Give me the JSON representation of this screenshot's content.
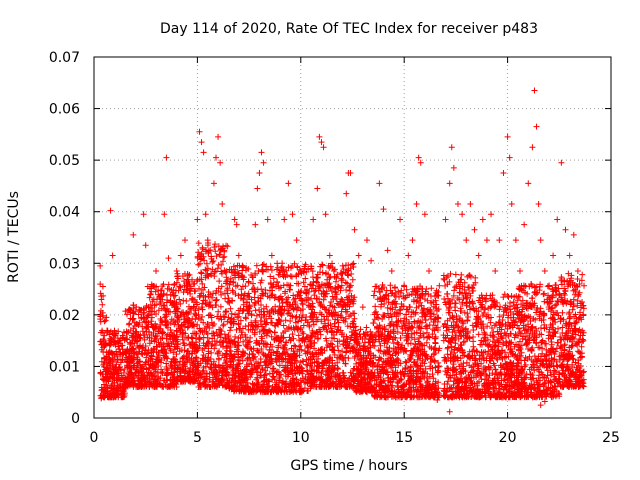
{
  "chart_data": {
    "type": "scatter",
    "title": "Day 114 of 2020, Rate Of TEC Index for receiver p483",
    "xlabel": "GPS time / hours",
    "ylabel": "ROTI / TECUs",
    "xlim": [
      0,
      25
    ],
    "ylim": [
      0,
      0.07
    ],
    "xticks": [
      0,
      5,
      10,
      15,
      20,
      25
    ],
    "xtick_labels": [
      "0",
      "5",
      "10",
      "15",
      "20",
      "25"
    ],
    "yticks": [
      0,
      0.01,
      0.02,
      0.03,
      0.04,
      0.05,
      0.06,
      0.07
    ],
    "ytick_labels": [
      "0",
      "0.01",
      "0.02",
      "0.03",
      "0.04",
      "0.05",
      "0.06",
      "0.07"
    ],
    "grid": true,
    "marker": "+",
    "color": "#ff0000",
    "series": [
      {
        "name": "ROTI",
        "points": [
          [
            0.3,
            0.0295
          ],
          [
            0.3,
            0.0148
          ],
          [
            0.4,
            0.0085
          ],
          [
            0.35,
            0.0038
          ],
          [
            0.4,
            0.0055
          ],
          [
            0.8,
            0.0402
          ],
          [
            0.9,
            0.0315
          ],
          [
            1.0,
            0.012
          ],
          [
            1.2,
            0.0095
          ],
          [
            1.4,
            0.0075
          ],
          [
            1.5,
            0.006
          ],
          [
            1.7,
            0.0125
          ],
          [
            1.8,
            0.0095
          ],
          [
            1.9,
            0.0355
          ],
          [
            2.0,
            0.0155
          ],
          [
            2.2,
            0.021
          ],
          [
            2.3,
            0.0195
          ],
          [
            2.4,
            0.0395
          ],
          [
            2.5,
            0.0335
          ],
          [
            2.6,
            0.0255
          ],
          [
            2.7,
            0.0145
          ],
          [
            2.8,
            0.0075
          ],
          [
            3.0,
            0.0285
          ],
          [
            3.2,
            0.0235
          ],
          [
            3.3,
            0.0185
          ],
          [
            3.4,
            0.0395
          ],
          [
            3.5,
            0.0505
          ],
          [
            3.6,
            0.031
          ],
          [
            3.7,
            0.0225
          ],
          [
            3.8,
            0.0155
          ],
          [
            3.9,
            0.0095
          ],
          [
            4.0,
            0.0285
          ],
          [
            4.2,
            0.0315
          ],
          [
            4.3,
            0.0275
          ],
          [
            4.4,
            0.0345
          ],
          [
            4.5,
            0.0155
          ],
          [
            4.6,
            0.0205
          ],
          [
            4.7,
            0.0185
          ],
          [
            4.8,
            0.0135
          ],
          [
            4.9,
            0.0085
          ],
          [
            5.0,
            0.0385
          ],
          [
            5.1,
            0.0555
          ],
          [
            5.2,
            0.0535
          ],
          [
            5.3,
            0.0515
          ],
          [
            5.4,
            0.0395
          ],
          [
            5.5,
            0.0345
          ],
          [
            5.6,
            0.0225
          ],
          [
            5.7,
            0.0185
          ],
          [
            5.8,
            0.0455
          ],
          [
            5.9,
            0.0505
          ],
          [
            6.0,
            0.0545
          ],
          [
            6.1,
            0.0495
          ],
          [
            6.2,
            0.0415
          ],
          [
            6.3,
            0.0325
          ],
          [
            6.4,
            0.0265
          ],
          [
            6.5,
            0.0195
          ],
          [
            6.6,
            0.0145
          ],
          [
            6.7,
            0.0115
          ],
          [
            6.8,
            0.0385
          ],
          [
            6.9,
            0.0375
          ],
          [
            7.0,
            0.0315
          ],
          [
            7.2,
            0.0255
          ],
          [
            7.4,
            0.0225
          ],
          [
            7.6,
            0.0185
          ],
          [
            7.8,
            0.0375
          ],
          [
            7.9,
            0.0445
          ],
          [
            8.0,
            0.0475
          ],
          [
            8.1,
            0.0515
          ],
          [
            8.2,
            0.0495
          ],
          [
            8.4,
            0.0385
          ],
          [
            8.6,
            0.0315
          ],
          [
            8.8,
            0.0255
          ],
          [
            9.0,
            0.0205
          ],
          [
            9.2,
            0.0385
          ],
          [
            9.4,
            0.0455
          ],
          [
            9.6,
            0.0395
          ],
          [
            9.8,
            0.0345
          ],
          [
            10.0,
            0.0285
          ],
          [
            10.2,
            0.0255
          ],
          [
            10.4,
            0.0215
          ],
          [
            10.6,
            0.0385
          ],
          [
            10.8,
            0.0445
          ],
          [
            10.9,
            0.0545
          ],
          [
            11.0,
            0.0535
          ],
          [
            11.1,
            0.0525
          ],
          [
            11.2,
            0.0395
          ],
          [
            11.4,
            0.0315
          ],
          [
            11.6,
            0.0285
          ],
          [
            11.8,
            0.0255
          ],
          [
            12.0,
            0.0215
          ],
          [
            12.2,
            0.0435
          ],
          [
            12.3,
            0.0475
          ],
          [
            12.4,
            0.0475
          ],
          [
            12.6,
            0.0365
          ],
          [
            12.8,
            0.0315
          ],
          [
            13.0,
            0.0215
          ],
          [
            13.2,
            0.0345
          ],
          [
            13.4,
            0.0305
          ],
          [
            13.6,
            0.0255
          ],
          [
            13.8,
            0.0455
          ],
          [
            14.0,
            0.0405
          ],
          [
            14.2,
            0.0325
          ],
          [
            14.4,
            0.0285
          ],
          [
            14.6,
            0.0235
          ],
          [
            14.8,
            0.0385
          ],
          [
            15.0,
            0.0255
          ],
          [
            15.2,
            0.0315
          ],
          [
            15.4,
            0.0345
          ],
          [
            15.6,
            0.0415
          ],
          [
            15.7,
            0.0505
          ],
          [
            15.8,
            0.0495
          ],
          [
            16.0,
            0.0395
          ],
          [
            16.2,
            0.0285
          ],
          [
            16.4,
            0.0225
          ],
          [
            16.6,
            0.0195
          ],
          [
            16.7,
            0.0135
          ],
          [
            17.0,
            0.0385
          ],
          [
            17.2,
            0.0455
          ],
          [
            17.3,
            0.0525
          ],
          [
            17.4,
            0.0485
          ],
          [
            17.6,
            0.0415
          ],
          [
            17.8,
            0.0395
          ],
          [
            18.0,
            0.0345
          ],
          [
            18.2,
            0.0415
          ],
          [
            18.4,
            0.0365
          ],
          [
            18.6,
            0.0315
          ],
          [
            18.8,
            0.0385
          ],
          [
            19.0,
            0.0345
          ],
          [
            19.2,
            0.0395
          ],
          [
            19.4,
            0.0285
          ],
          [
            19.6,
            0.0345
          ],
          [
            19.8,
            0.0475
          ],
          [
            20.0,
            0.0545
          ],
          [
            20.1,
            0.0505
          ],
          [
            20.2,
            0.0415
          ],
          [
            20.4,
            0.0345
          ],
          [
            20.6,
            0.0285
          ],
          [
            20.8,
            0.0375
          ],
          [
            21.0,
            0.0455
          ],
          [
            21.2,
            0.0525
          ],
          [
            21.3,
            0.0635
          ],
          [
            21.4,
            0.0565
          ],
          [
            21.5,
            0.0415
          ],
          [
            21.6,
            0.0345
          ],
          [
            21.8,
            0.0285
          ],
          [
            22.0,
            0.0255
          ],
          [
            22.2,
            0.0315
          ],
          [
            22.4,
            0.0385
          ],
          [
            22.6,
            0.0495
          ],
          [
            22.8,
            0.0365
          ],
          [
            23.0,
            0.0315
          ],
          [
            23.2,
            0.0355
          ],
          [
            23.4,
            0.0285
          ],
          [
            23.6,
            0.0225
          ],
          [
            17.2,
            0.0012
          ],
          [
            21.6,
            0.0025
          ],
          [
            21.8,
            0.0032
          ],
          [
            16.6,
            0.0035
          ],
          [
            18.0,
            0.0045
          ]
        ]
      }
    ],
    "dense_bands": [
      {
        "x": [
          0.3,
          0.6
        ],
        "y": [
          0.004,
          0.026
        ]
      },
      {
        "x": [
          0.6,
          1.5
        ],
        "y": [
          0.004,
          0.017
        ]
      },
      {
        "x": [
          1.5,
          2.6
        ],
        "y": [
          0.006,
          0.022
        ]
      },
      {
        "x": [
          2.6,
          4.0
        ],
        "y": [
          0.006,
          0.026
        ]
      },
      {
        "x": [
          4.0,
          5.0
        ],
        "y": [
          0.007,
          0.028
        ]
      },
      {
        "x": [
          5.0,
          6.5
        ],
        "y": [
          0.006,
          0.034
        ]
      },
      {
        "x": [
          6.5,
          8.5
        ],
        "y": [
          0.005,
          0.03
        ]
      },
      {
        "x": [
          8.5,
          10.5
        ],
        "y": [
          0.005,
          0.03
        ]
      },
      {
        "x": [
          10.5,
          12.6
        ],
        "y": [
          0.006,
          0.03
        ]
      },
      {
        "x": [
          12.6,
          13.5
        ],
        "y": [
          0.005,
          0.018
        ]
      },
      {
        "x": [
          13.5,
          15.3
        ],
        "y": [
          0.004,
          0.026
        ]
      },
      {
        "x": [
          15.3,
          16.7
        ],
        "y": [
          0.004,
          0.026
        ]
      },
      {
        "x": [
          16.9,
          18.5
        ],
        "y": [
          0.004,
          0.028
        ]
      },
      {
        "x": [
          18.5,
          20.5
        ],
        "y": [
          0.004,
          0.024
        ]
      },
      {
        "x": [
          20.5,
          22.5
        ],
        "y": [
          0.004,
          0.026
        ]
      },
      {
        "x": [
          22.5,
          23.7
        ],
        "y": [
          0.006,
          0.028
        ]
      }
    ]
  }
}
